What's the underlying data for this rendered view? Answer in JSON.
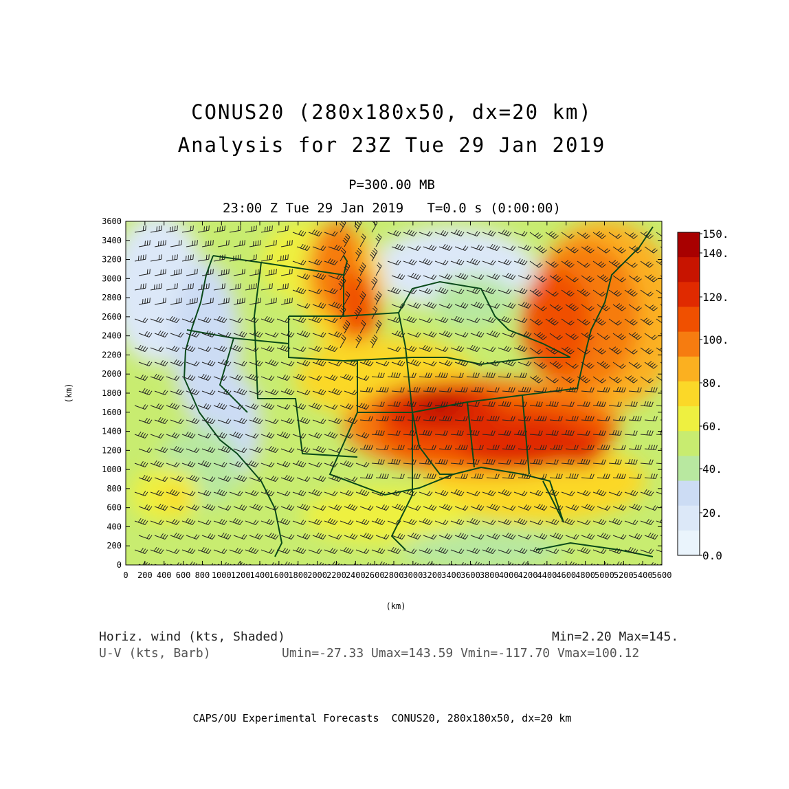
{
  "title": {
    "line1": "CONUS20 (280x180x50, dx=20 km)",
    "line2": "Analysis for 23Z Tue 29 Jan 2019"
  },
  "subtitle": {
    "level": "P=300.00 MB",
    "time": "23:00 Z Tue 29 Jan 2019   T=0.0 s (0:00:00)"
  },
  "axes": {
    "xlabel": "(km)",
    "ylabel": "(km)",
    "x_ticks": [
      "0",
      "200",
      "400",
      "600",
      "800",
      "1000",
      "1200",
      "1400",
      "1600",
      "1800",
      "2000",
      "2200",
      "2400",
      "2600",
      "2800",
      "3000",
      "3200",
      "3400",
      "3600",
      "3800",
      "4000",
      "4200",
      "4400",
      "4600",
      "4800",
      "5000",
      "5200",
      "5400",
      "5600"
    ],
    "y_ticks": [
      "0",
      "200",
      "400",
      "600",
      "800",
      "1000",
      "1200",
      "1400",
      "1600",
      "1800",
      "2000",
      "2200",
      "2400",
      "2600",
      "2800",
      "3000",
      "3200",
      "3400",
      "3600"
    ]
  },
  "colorbar": {
    "labels": [
      "150.",
      "140.",
      "120.",
      "100.",
      "80.",
      "60.",
      "40.",
      "20.",
      "0.0"
    ],
    "colors": [
      "#a80000",
      "#c81400",
      "#e02a00",
      "#f05000",
      "#f67c10",
      "#fbb020",
      "#fbd828",
      "#eef040",
      "#c8ec70",
      "#b8e8a0",
      "#ccdcf4",
      "#dce8f8",
      "#eaf4fc"
    ]
  },
  "info": {
    "shaded_label": "Horiz. wind (kts, Shaded)",
    "minmax": "Min=2.20 Max=145.",
    "barb_label": "U-V (kts, Barb)",
    "uv_stats": "Umin=-27.33 Umax=143.59 Vmin=-117.70 Vmax=100.12"
  },
  "footer": "CAPS/OU Experimental Forecasts  CONUS20, 280x180x50, dx=20 km",
  "map_colors": {
    "border": "#0a4a1a",
    "barb": "#222222"
  }
}
